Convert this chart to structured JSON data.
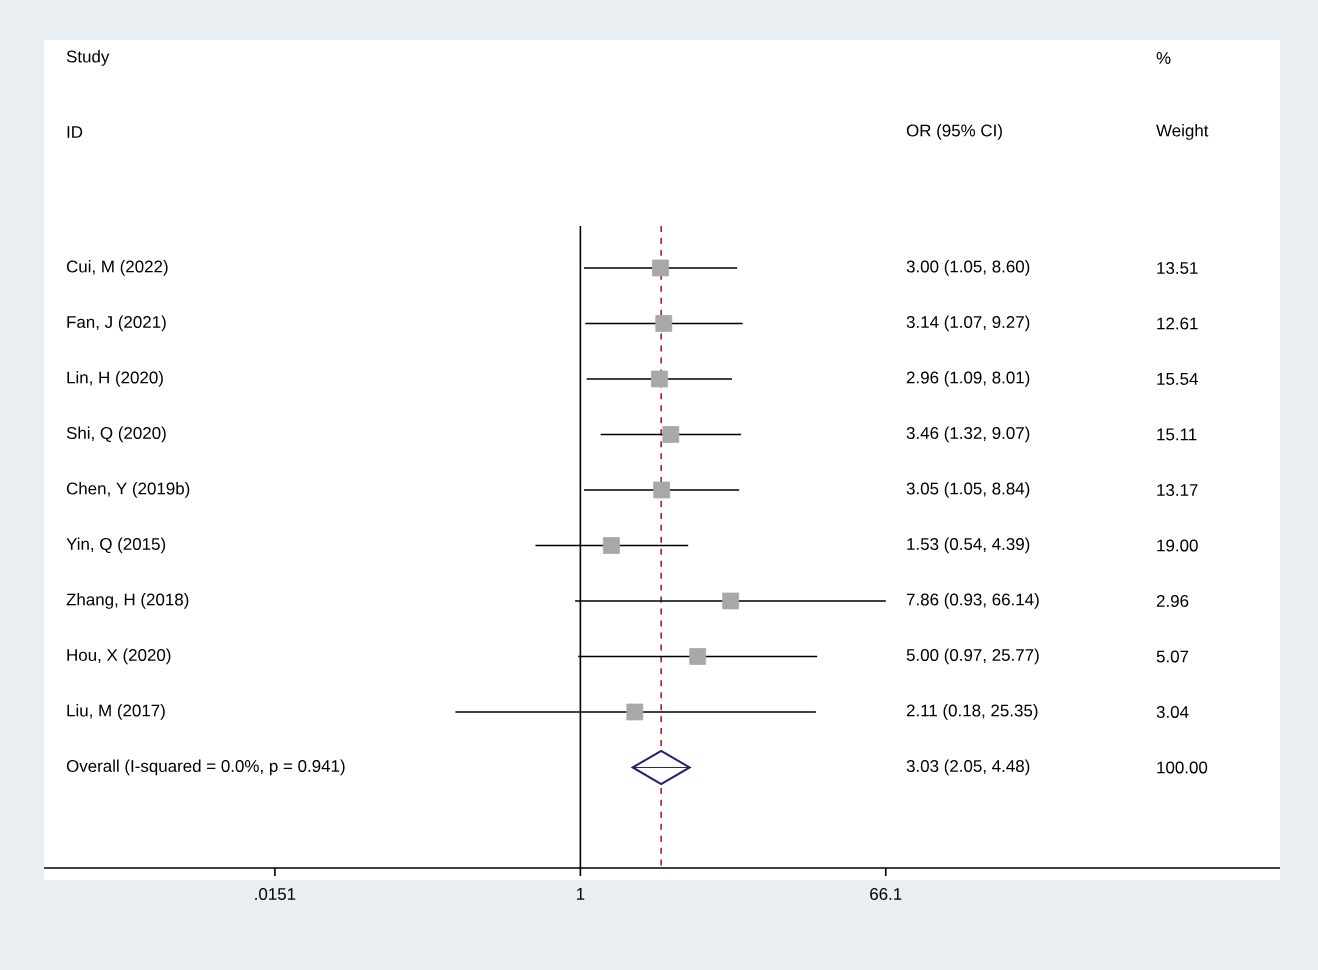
{
  "chart_data": {
    "type": "scatter",
    "orientation": "horizontal",
    "log": "x",
    "categories": [
      "Cui, M (2022)",
      "Fan, J (2021)",
      "Lin, H (2020)",
      "Shi, Q (2020)",
      "Chen, Y (2019b)",
      "Yin, Q (2015)",
      "Zhang, H (2018)",
      "Hou, X (2020)",
      "Liu, M (2017)",
      "Overall  (I-squared = 0.0%, p = 0.941)"
    ],
    "series": [
      {
        "type": "scatter",
        "marker": "square",
        "color": "#a8a8a8",
        "values": [
          3.0,
          3.14,
          2.96,
          3.46,
          3.05,
          1.53,
          7.86,
          5.0,
          2.11,
          null
        ],
        "errors": [
          [
            1.05,
            8.6
          ],
          [
            1.07,
            9.27
          ],
          [
            1.09,
            8.01
          ],
          [
            1.32,
            9.07
          ],
          [
            1.05,
            8.84
          ],
          [
            0.54,
            4.39
          ],
          [
            0.93,
            66.14
          ],
          [
            0.97,
            25.77
          ],
          [
            0.18,
            25.35
          ],
          null
        ]
      },
      {
        "type": "scatter",
        "marker": "diamond",
        "color": "#1f1f7a",
        "values": [
          null,
          null,
          null,
          null,
          null,
          null,
          null,
          null,
          null,
          3.03
        ],
        "errors": [
          null,
          null,
          null,
          null,
          null,
          null,
          null,
          null,
          null,
          [
            2.05,
            4.48
          ]
        ]
      }
    ],
    "xlim": [
      0.000635,
      14800
    ],
    "xticks": [
      {
        "value": 0.0151,
        "label": ".0151"
      },
      1,
      {
        "value": 66.1,
        "label": "66.1"
      }
    ],
    "ref_lines": [
      {
        "axis": "x",
        "value": 1,
        "color": "#000000",
        "line_style": "solid"
      },
      {
        "axis": "x",
        "value": 3.03,
        "color": "#a3203c",
        "line_style": "dashed"
      }
    ],
    "annotations": [
      "Study",
      "ID",
      "OR (95% CI)",
      "%",
      "Weight",
      "3.00 (1.05, 8.60)",
      "3.14 (1.07, 9.27)",
      "2.96 (1.09, 8.01)",
      "3.46 (1.32, 9.07)",
      "3.05 (1.05, 8.84)",
      "1.53 (0.54, 4.39)",
      "7.86 (0.93, 66.14)",
      "5.00 (0.97, 25.77)",
      "2.11 (0.18, 25.35)",
      "3.03 (2.05, 4.48)",
      "13.51",
      "12.61",
      "15.54",
      "15.11",
      "13.17",
      "19.00",
      "2.96",
      "5.07",
      "3.04",
      "100.00"
    ],
    "grid": false
  }
}
